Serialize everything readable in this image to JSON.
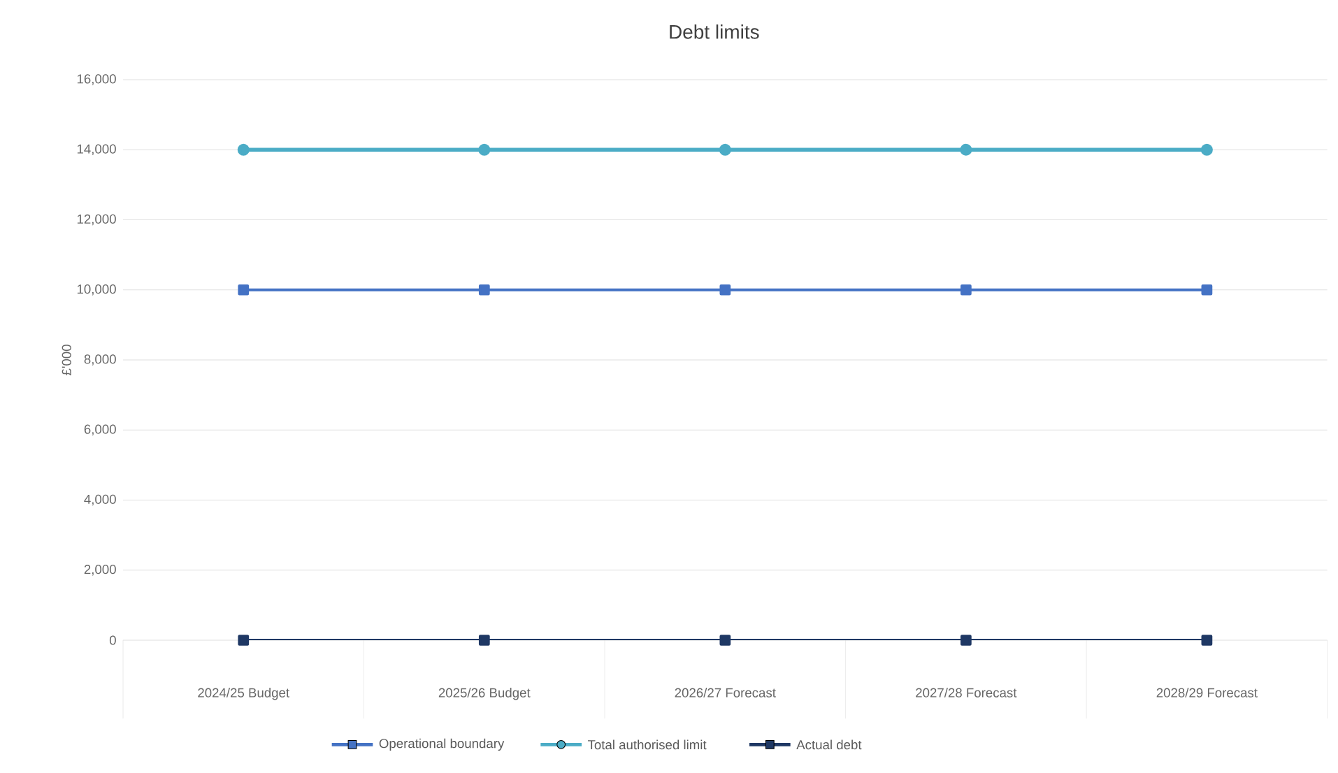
{
  "chart_data": {
    "type": "line",
    "title": "Debt limits",
    "ylabel": "£'000",
    "categories": [
      "2024/25 Budget",
      "2025/26 Budget",
      "2026/27 Forecast",
      "2027/28 Forecast",
      "2028/29 Forecast"
    ],
    "series": [
      {
        "name": "Operational boundary",
        "color": "#4472c4",
        "marker": "square",
        "values": [
          10000,
          10000,
          10000,
          10000,
          10000
        ]
      },
      {
        "name": "Total authorised limit",
        "color": "#4bacc6",
        "marker": "circle",
        "values": [
          14000,
          14000,
          14000,
          14000,
          14000
        ]
      },
      {
        "name": "Actual debt",
        "color": "#1f3864",
        "marker": "square",
        "values": [
          0,
          0,
          0,
          0,
          0
        ]
      }
    ],
    "ylim": [
      0,
      16000
    ],
    "yticks": [
      {
        "value": 0,
        "label": "0"
      },
      {
        "value": 2000,
        "label": "2,000"
      },
      {
        "value": 4000,
        "label": "4,000"
      },
      {
        "value": 6000,
        "label": "6,000"
      },
      {
        "value": 8000,
        "label": "8,000"
      },
      {
        "value": 10000,
        "label": "10,000"
      },
      {
        "value": 12000,
        "label": "12,000"
      },
      {
        "value": 14000,
        "label": "14,000"
      },
      {
        "value": 16000,
        "label": "16,000"
      }
    ],
    "grid": "y",
    "legend": "bottom",
    "line_style": "solid"
  }
}
